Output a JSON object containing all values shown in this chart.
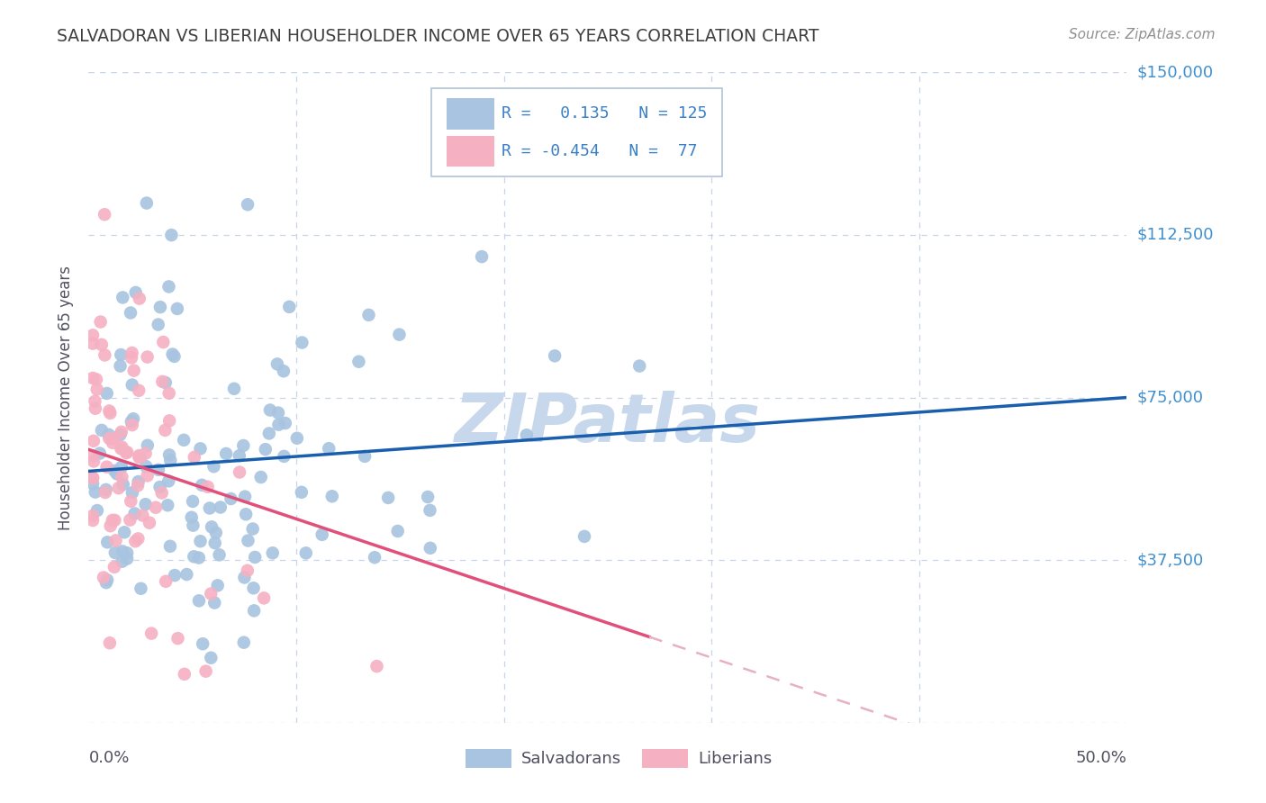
{
  "title": "SALVADORAN VS LIBERIAN HOUSEHOLDER INCOME OVER 65 YEARS CORRELATION CHART",
  "source": "Source: ZipAtlas.com",
  "ylabel": "Householder Income Over 65 years",
  "xlim": [
    0.0,
    0.5
  ],
  "ylim": [
    0,
    150000
  ],
  "yticks": [
    0,
    37500,
    75000,
    112500,
    150000
  ],
  "salvador_R": 0.135,
  "salvador_N": 125,
  "liberian_R": -0.454,
  "liberian_N": 77,
  "salvador_color": "#a8c4e0",
  "liberian_color": "#f5b0c2",
  "salvador_line_color": "#1a5fad",
  "liberian_line_color": "#e0507a",
  "liberian_line_dashed_color": "#e8b0c4",
  "background_color": "#ffffff",
  "grid_color": "#c8d4e8",
  "title_color": "#404040",
  "source_color": "#909090",
  "axis_label_color": "#505060",
  "right_label_color": "#4090d0",
  "watermark_color": "#c8d8ec",
  "watermark_text": "ZIPatlas",
  "legend_R_color": "#3a80c8",
  "legend_border_color": "#b0c4d8"
}
